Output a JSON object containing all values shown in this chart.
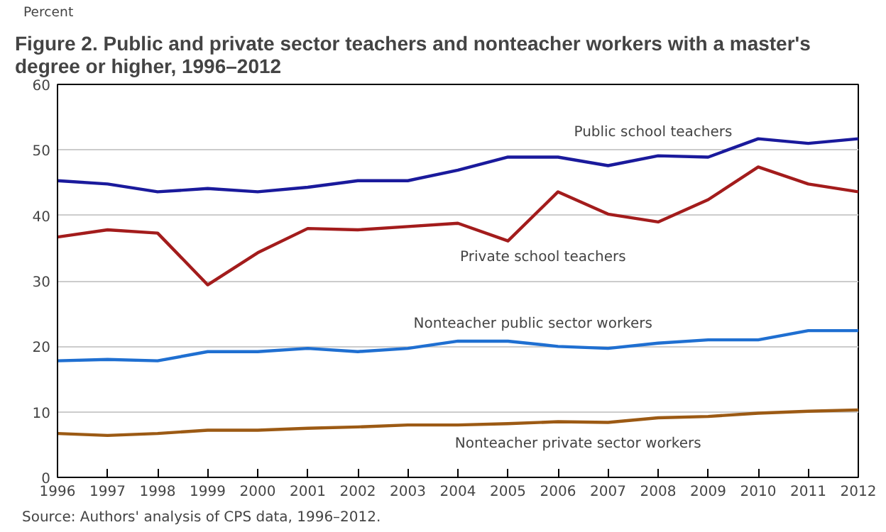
{
  "chart_data": {
    "type": "line",
    "title": "Figure 2. Public and private sector teachers and nonteacher workers with a master's degree or higher, 1996–2012",
    "ylabel": "Percent",
    "x": [
      1996,
      1997,
      1998,
      1999,
      2000,
      2001,
      2002,
      2003,
      2004,
      2005,
      2006,
      2007,
      2008,
      2009,
      2010,
      2011,
      2012
    ],
    "series": [
      {
        "name": "Public school teachers",
        "color": "#1a1a9c",
        "values": [
          45.3,
          44.8,
          43.6,
          44.1,
          43.6,
          44.3,
          45.3,
          45.3,
          46.9,
          48.9,
          48.9,
          47.6,
          49.1,
          48.9,
          51.7,
          51.0,
          51.7
        ]
      },
      {
        "name": "Private school teachers",
        "color": "#a31c1c",
        "values": [
          36.7,
          37.8,
          37.3,
          29.4,
          34.3,
          38.0,
          37.8,
          38.3,
          38.8,
          36.1,
          43.6,
          40.2,
          39.0,
          42.4,
          47.4,
          44.8,
          43.6
        ]
      },
      {
        "name": "Nonteacher public sector workers",
        "color": "#1f6fd1",
        "values": [
          17.8,
          18.0,
          17.8,
          19.2,
          19.2,
          19.7,
          19.2,
          19.7,
          20.8,
          20.8,
          20.0,
          19.7,
          20.5,
          21.0,
          21.0,
          22.4,
          22.4
        ]
      },
      {
        "name": "Nonteacher private sector workers",
        "color": "#9c5a14",
        "values": [
          6.7,
          6.4,
          6.7,
          7.2,
          7.2,
          7.5,
          7.7,
          8.0,
          8.0,
          8.2,
          8.5,
          8.4,
          9.1,
          9.3,
          9.8,
          10.1,
          10.3
        ]
      }
    ],
    "xlim": [
      1996,
      2012
    ],
    "xticks": [
      1996,
      1997,
      1998,
      1999,
      2000,
      2001,
      2002,
      2003,
      2004,
      2005,
      2006,
      2007,
      2008,
      2009,
      2010,
      2011,
      2012
    ],
    "ylim": [
      0,
      60
    ],
    "yticks": [
      0,
      10,
      20,
      30,
      40,
      50,
      60
    ],
    "grid": "y",
    "annotations": [
      "Source: Authors' analysis of CPS data, 1996–2012."
    ]
  }
}
